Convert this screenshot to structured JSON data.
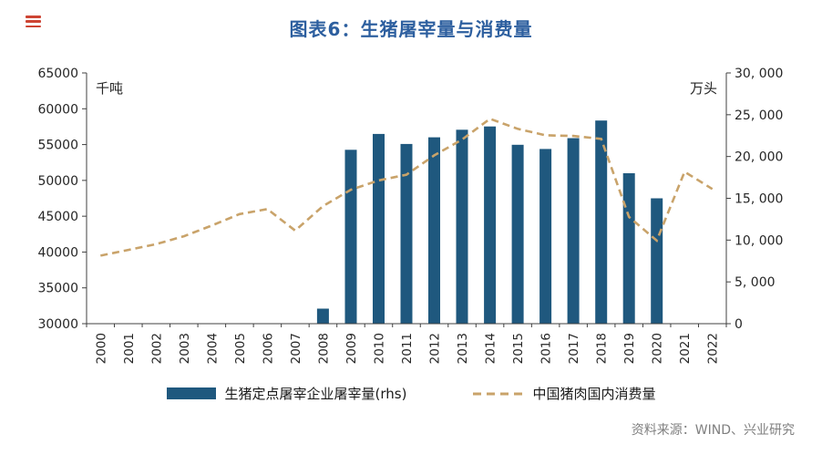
{
  "header": {
    "icon": "list-icon"
  },
  "colors": {
    "title": "#2d5f9f",
    "bar": "#1f587e",
    "line": "#c9a36a",
    "icon": "#cd4433",
    "axis": "#404040",
    "tick_text": "#262626",
    "source_text": "#7f7f7f"
  },
  "chart_data": {
    "type": "bar",
    "subtype": "bar+line dual-axis combo",
    "title": "图表6：生猪屠宰量与消费量",
    "grid": false,
    "legend_position": "bottom",
    "categories": [
      "2000",
      "2001",
      "2002",
      "2003",
      "2004",
      "2005",
      "2006",
      "2007",
      "2008",
      "2009",
      "2010",
      "2011",
      "2012",
      "2013",
      "2014",
      "2015",
      "2016",
      "2017",
      "2018",
      "2019",
      "2020",
      "2021",
      "2022"
    ],
    "left_axis": {
      "unit": "千吨",
      "min": 30000,
      "max": 65000,
      "ticks": [
        {
          "v": 65000,
          "label": "65000"
        },
        {
          "v": 60000,
          "label": "60000"
        },
        {
          "v": 55000,
          "label": "55000"
        },
        {
          "v": 50000,
          "label": "50000"
        },
        {
          "v": 45000,
          "label": "45000"
        },
        {
          "v": 40000,
          "label": "40000"
        },
        {
          "v": 35000,
          "label": "35000"
        },
        {
          "v": 30000,
          "label": "30000"
        }
      ]
    },
    "right_axis": {
      "unit": "万头",
      "min": 0,
      "max": 30000,
      "ticks": [
        {
          "v": 30000,
          "label": "30, 000"
        },
        {
          "v": 25000,
          "label": "25, 000"
        },
        {
          "v": 20000,
          "label": "20, 000"
        },
        {
          "v": 15000,
          "label": "15, 000"
        },
        {
          "v": 10000,
          "label": "10, 000"
        },
        {
          "v": 5000,
          "label": "5, 000"
        },
        {
          "v": 0,
          "label": "0"
        }
      ]
    },
    "series": [
      {
        "name": "生猪定点屠宰企业屠宰量(rhs)",
        "type": "bar",
        "axis": "right",
        "color": "#1f587e",
        "values": [
          null,
          null,
          null,
          null,
          null,
          null,
          null,
          null,
          1800,
          20800,
          22700,
          21500,
          22300,
          23200,
          23600,
          21400,
          20900,
          22200,
          24300,
          18000,
          15000,
          null,
          null
        ]
      },
      {
        "name": "中国猪肉国内消费量",
        "type": "line",
        "style": "dashed",
        "axis": "left",
        "color": "#c9a36a",
        "values": [
          39500,
          40300,
          41100,
          42200,
          43700,
          45300,
          46000,
          43000,
          46400,
          48700,
          50000,
          50800,
          53500,
          55700,
          58600,
          57200,
          56300,
          56200,
          55800,
          44900,
          41600,
          51200,
          48800
        ]
      }
    ]
  },
  "source": "资料来源：WIND、兴业研究"
}
